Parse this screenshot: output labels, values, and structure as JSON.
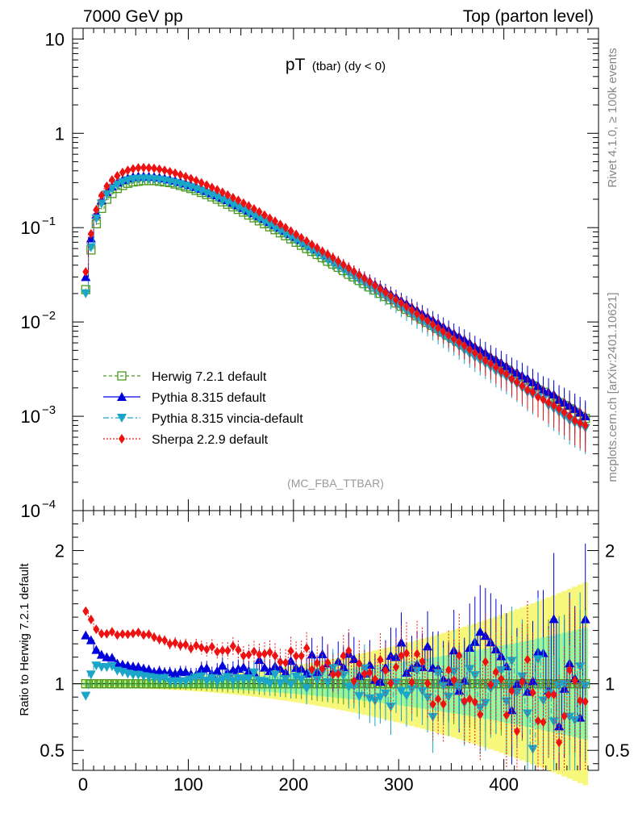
{
  "header": {
    "left": "7000 GeV pp",
    "right": "Top (parton level)"
  },
  "side_labels": {
    "rivet": "Rivet 4.1.0, ≥ 100k events",
    "mcplots": "mcplots.cern.ch [arXiv:2401.10621]"
  },
  "chart_data": {
    "type": "line",
    "title_main": "pT",
    "title_sub": "(tbar) (dy < 0)",
    "analysis_label": "(MC_FBA_TTBAR)",
    "xlabel": "",
    "ylabel_main": "",
    "ylabel_ratio": "Ratio to Herwig 7.2.1 default",
    "xlim": [
      -10,
      490
    ],
    "ylim_main": [
      0.0001,
      13
    ],
    "ylim_ratio": [
      0.35,
      2.3
    ],
    "x_ticks": [
      "0",
      "100",
      "200",
      "300",
      "400"
    ],
    "y_ticks_main": [
      {
        "base": "10",
        "exp": "",
        "value": 10,
        "label": "10"
      },
      {
        "base": "1",
        "exp": "",
        "value": 1,
        "label": "1"
      },
      {
        "base": "10",
        "exp": "−1",
        "value": 0.1,
        "label": "10^−1"
      },
      {
        "base": "10",
        "exp": "−2",
        "value": 0.01,
        "label": "10^−2"
      },
      {
        "base": "10",
        "exp": "−3",
        "value": 0.001,
        "label": "10^−3"
      },
      {
        "base": "10",
        "exp": "−4",
        "value": 0.0001,
        "label": "10^−4"
      }
    ],
    "y_ticks_ratio": [
      "0.5",
      "1",
      "2"
    ],
    "legend_position": "bottom-left",
    "series": [
      {
        "name": "Herwig 7.2.1 default",
        "color": "#4a9a1e",
        "marker": "open-square",
        "dash": "4,3",
        "values": [
          0.022,
          0.058,
          0.11,
          0.16,
          0.2,
          0.23,
          0.26,
          0.28,
          0.295,
          0.305,
          0.31,
          0.315,
          0.315,
          0.315,
          0.31,
          0.305,
          0.3,
          0.29,
          0.28,
          0.27,
          0.26,
          0.248,
          0.236,
          0.224,
          0.212,
          0.2,
          0.188,
          0.177,
          0.166,
          0.156,
          0.146,
          0.136,
          0.127,
          0.118,
          0.11,
          0.102,
          0.095,
          0.088,
          0.082,
          0.076,
          0.07,
          0.065,
          0.06,
          0.056,
          0.052,
          0.048,
          0.044,
          0.041,
          0.038,
          0.035,
          0.032,
          0.03,
          0.0275,
          0.0255,
          0.0235,
          0.0218,
          0.0201,
          0.0186,
          0.0172,
          0.0159,
          0.0147,
          0.0136,
          0.0126,
          0.0116,
          0.0107,
          0.0099,
          0.0092,
          0.0085,
          0.0078,
          0.0072,
          0.0067,
          0.0062,
          0.0057,
          0.0053,
          0.0049,
          0.0045,
          0.0042,
          0.0039,
          0.0036,
          0.0033,
          0.0031,
          0.0028,
          0.0026,
          0.0024,
          0.0022,
          0.0021,
          0.0019,
          0.0018,
          0.0016,
          0.0015,
          0.0014,
          0.0013,
          0.0012,
          0.0011,
          0.001,
          0.00095
        ]
      },
      {
        "name": "Pythia 8.315 default",
        "color": "#0000dd",
        "marker": "triangle-up",
        "dash": "",
        "values": [
          0.03,
          0.077,
          0.138,
          0.195,
          0.24,
          0.275,
          0.3,
          0.32,
          0.335,
          0.345,
          0.35,
          0.35,
          0.348,
          0.345,
          0.34,
          0.333,
          0.325,
          0.315,
          0.305,
          0.294,
          0.282,
          0.27,
          0.258,
          0.245,
          0.232,
          0.22,
          0.208,
          0.196,
          0.184,
          0.173,
          0.162,
          0.152,
          0.142,
          0.133,
          0.124,
          0.115,
          0.107,
          0.1,
          0.093,
          0.086,
          0.08,
          0.074,
          0.069,
          0.064,
          0.059,
          0.055,
          0.051,
          0.047,
          0.0435,
          0.0402,
          0.0372,
          0.0344,
          0.0318,
          0.0294,
          0.0272,
          0.0251,
          0.0232,
          0.0214,
          0.0198,
          0.0183,
          0.0169,
          0.0156,
          0.0144,
          0.0133,
          0.0123,
          0.0113,
          0.0105,
          0.0097,
          0.0089,
          0.0082,
          0.0076,
          0.007,
          0.0065,
          0.006,
          0.0055,
          0.0051,
          0.0047,
          0.0043,
          0.004,
          0.0037,
          0.0034,
          0.0031,
          0.0029,
          0.0027,
          0.0025,
          0.0023,
          0.0021,
          0.0019,
          0.0018,
          0.0017,
          0.0015,
          0.0014,
          0.0013,
          0.0012,
          0.0011,
          0.001
        ]
      },
      {
        "name": "Pythia 8.315 vincia-default",
        "color": "#1ba5c8",
        "marker": "triangle-down",
        "dash": "7,3,2,3",
        "values": [
          0.02,
          0.062,
          0.125,
          0.18,
          0.225,
          0.26,
          0.285,
          0.305,
          0.318,
          0.326,
          0.33,
          0.332,
          0.33,
          0.327,
          0.322,
          0.316,
          0.308,
          0.299,
          0.289,
          0.279,
          0.268,
          0.256,
          0.245,
          0.233,
          0.221,
          0.209,
          0.197,
          0.186,
          0.175,
          0.164,
          0.154,
          0.144,
          0.134,
          0.125,
          0.116,
          0.108,
          0.1,
          0.093,
          0.086,
          0.08,
          0.074,
          0.068,
          0.063,
          0.058,
          0.054,
          0.05,
          0.046,
          0.042,
          0.039,
          0.036,
          0.033,
          0.0305,
          0.028,
          0.0258,
          0.0237,
          0.0218,
          0.02,
          0.0184,
          0.0169,
          0.0155,
          0.0142,
          0.013,
          0.0119,
          0.0109,
          0.01,
          0.0092,
          0.0084,
          0.0077,
          0.0071,
          0.0065,
          0.006,
          0.0055,
          0.005,
          0.0046,
          0.0042,
          0.0039,
          0.0036,
          0.0033,
          0.003,
          0.0028,
          0.0026,
          0.0024,
          0.0022,
          0.002,
          0.0018,
          0.0017,
          0.0016,
          0.0015,
          0.0013,
          0.0012,
          0.0011,
          0.001,
          0.0009,
          0.00085,
          0.0008,
          0.00075
        ]
      },
      {
        "name": "Sherpa 2.2.9 default",
        "color": "#ee1111",
        "marker": "diamond",
        "dash": "2,2",
        "values": [
          0.034,
          0.086,
          0.155,
          0.22,
          0.275,
          0.32,
          0.355,
          0.385,
          0.405,
          0.42,
          0.43,
          0.432,
          0.43,
          0.425,
          0.416,
          0.405,
          0.392,
          0.378,
          0.363,
          0.347,
          0.331,
          0.315,
          0.299,
          0.283,
          0.267,
          0.252,
          0.237,
          0.222,
          0.208,
          0.195,
          0.182,
          0.17,
          0.158,
          0.147,
          0.136,
          0.126,
          0.117,
          0.108,
          0.1,
          0.092,
          0.085,
          0.078,
          0.072,
          0.066,
          0.061,
          0.056,
          0.052,
          0.048,
          0.044,
          0.0405,
          0.0372,
          0.0342,
          0.0314,
          0.0289,
          0.0265,
          0.0243,
          0.0223,
          0.0205,
          0.0188,
          0.0172,
          0.0158,
          0.0145,
          0.0133,
          0.0122,
          0.0112,
          0.0103,
          0.0094,
          0.0086,
          0.0079,
          0.0072,
          0.0066,
          0.0061,
          0.0056,
          0.0051,
          0.0047,
          0.0043,
          0.0039,
          0.0036,
          0.0033,
          0.003,
          0.0028,
          0.0025,
          0.0023,
          0.0021,
          0.0019,
          0.0018,
          0.0016,
          0.0015,
          0.0014,
          0.0013,
          0.0012,
          0.0011,
          0.001,
          0.0009,
          0.00085,
          0.0008
        ]
      }
    ]
  }
}
